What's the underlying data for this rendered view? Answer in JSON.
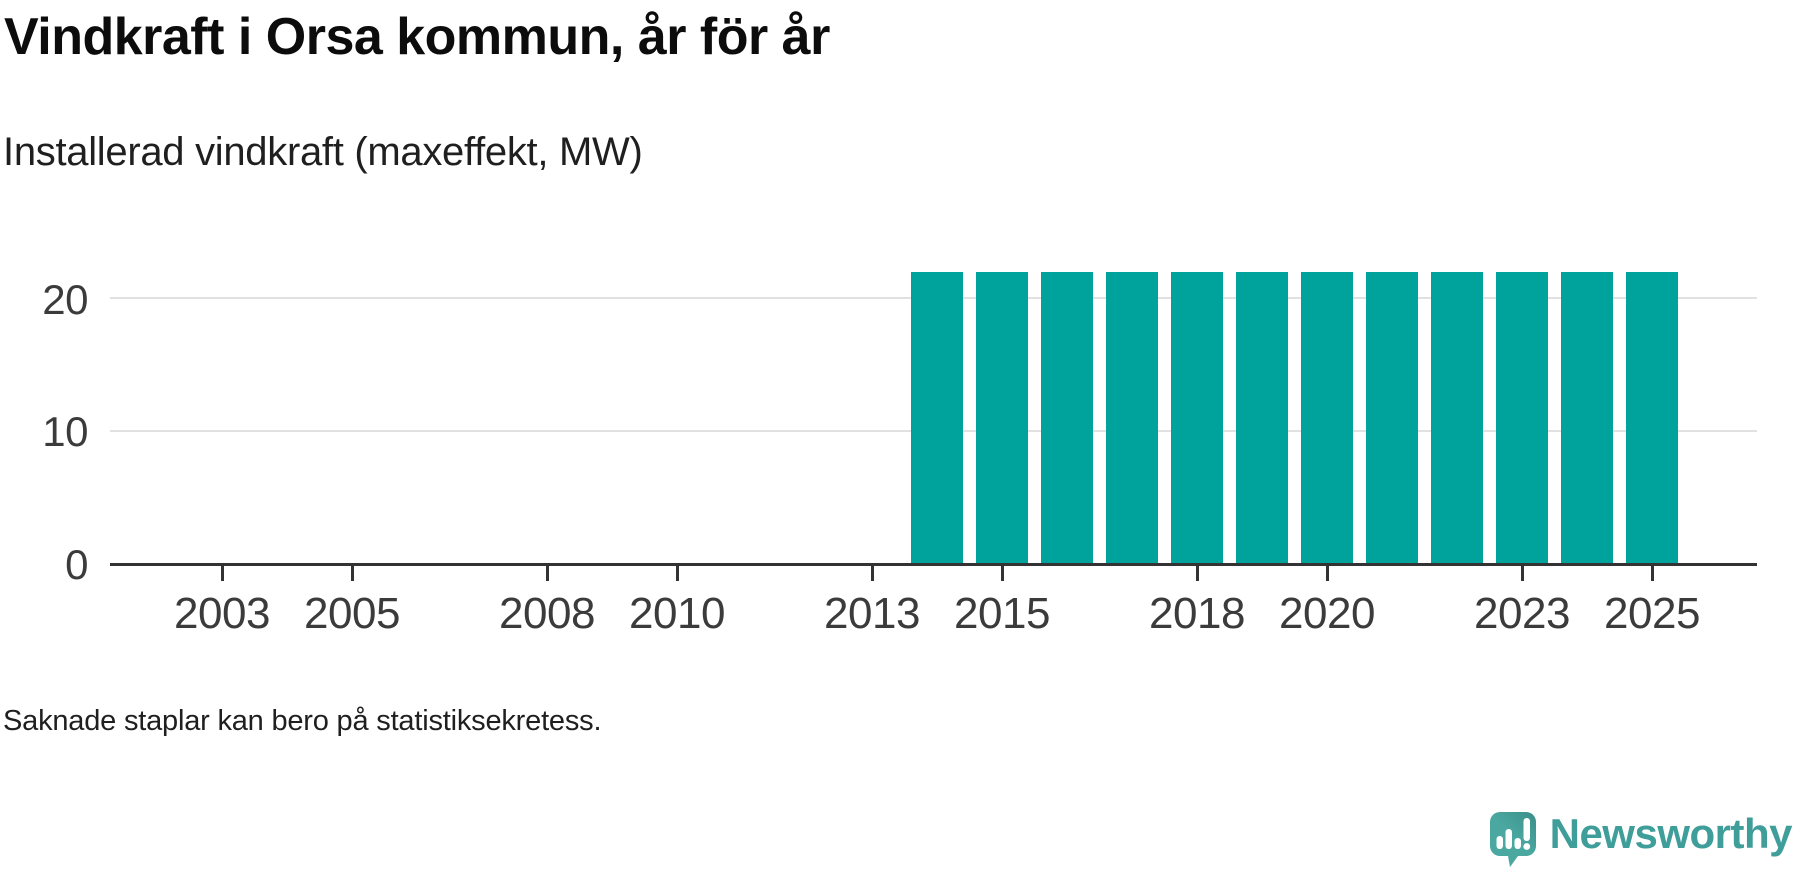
{
  "header": {
    "title": "Vindkraft i Orsa kommun, år för år",
    "subtitle": "Installerad vindkraft (maxeffekt, MW)"
  },
  "footnote": "Saknade staplar kan bero på statistiksekretess.",
  "brand": {
    "name": "Newsworthy",
    "icon": "newsworthy-speech-bubble-bar-chart-icon"
  },
  "colors": {
    "bar": "#00A39B",
    "axis": "#333333",
    "grid": "#E1E1E1",
    "label": "#3B3B3B",
    "brand_teal": "#3F9E99",
    "brand_icon": "#4AA8A1"
  },
  "chart_data": {
    "type": "bar",
    "title": "Vindkraft i Orsa kommun, år för år",
    "subtitle": "Installerad vindkraft (maxeffekt, MW)",
    "ylabel": "Installerad vindkraft (maxeffekt, MW)",
    "unit": "MW",
    "x": [
      2014,
      2015,
      2016,
      2017,
      2018,
      2019,
      2020,
      2021,
      2022,
      2023,
      2024,
      2025
    ],
    "values": [
      22,
      22,
      22,
      22,
      22,
      22,
      22,
      22,
      22,
      22,
      22,
      22
    ],
    "xticks": [
      2003,
      2005,
      2008,
      2010,
      2013,
      2015,
      2018,
      2020,
      2023,
      2025
    ],
    "yticks": [
      0,
      10,
      20
    ],
    "x_domain": [
      2002,
      2026
    ],
    "ylim": [
      0,
      22.5
    ],
    "grid": "horizontal",
    "legend": "none",
    "note": "Saknade staplar kan bero på statistiksekretess."
  }
}
